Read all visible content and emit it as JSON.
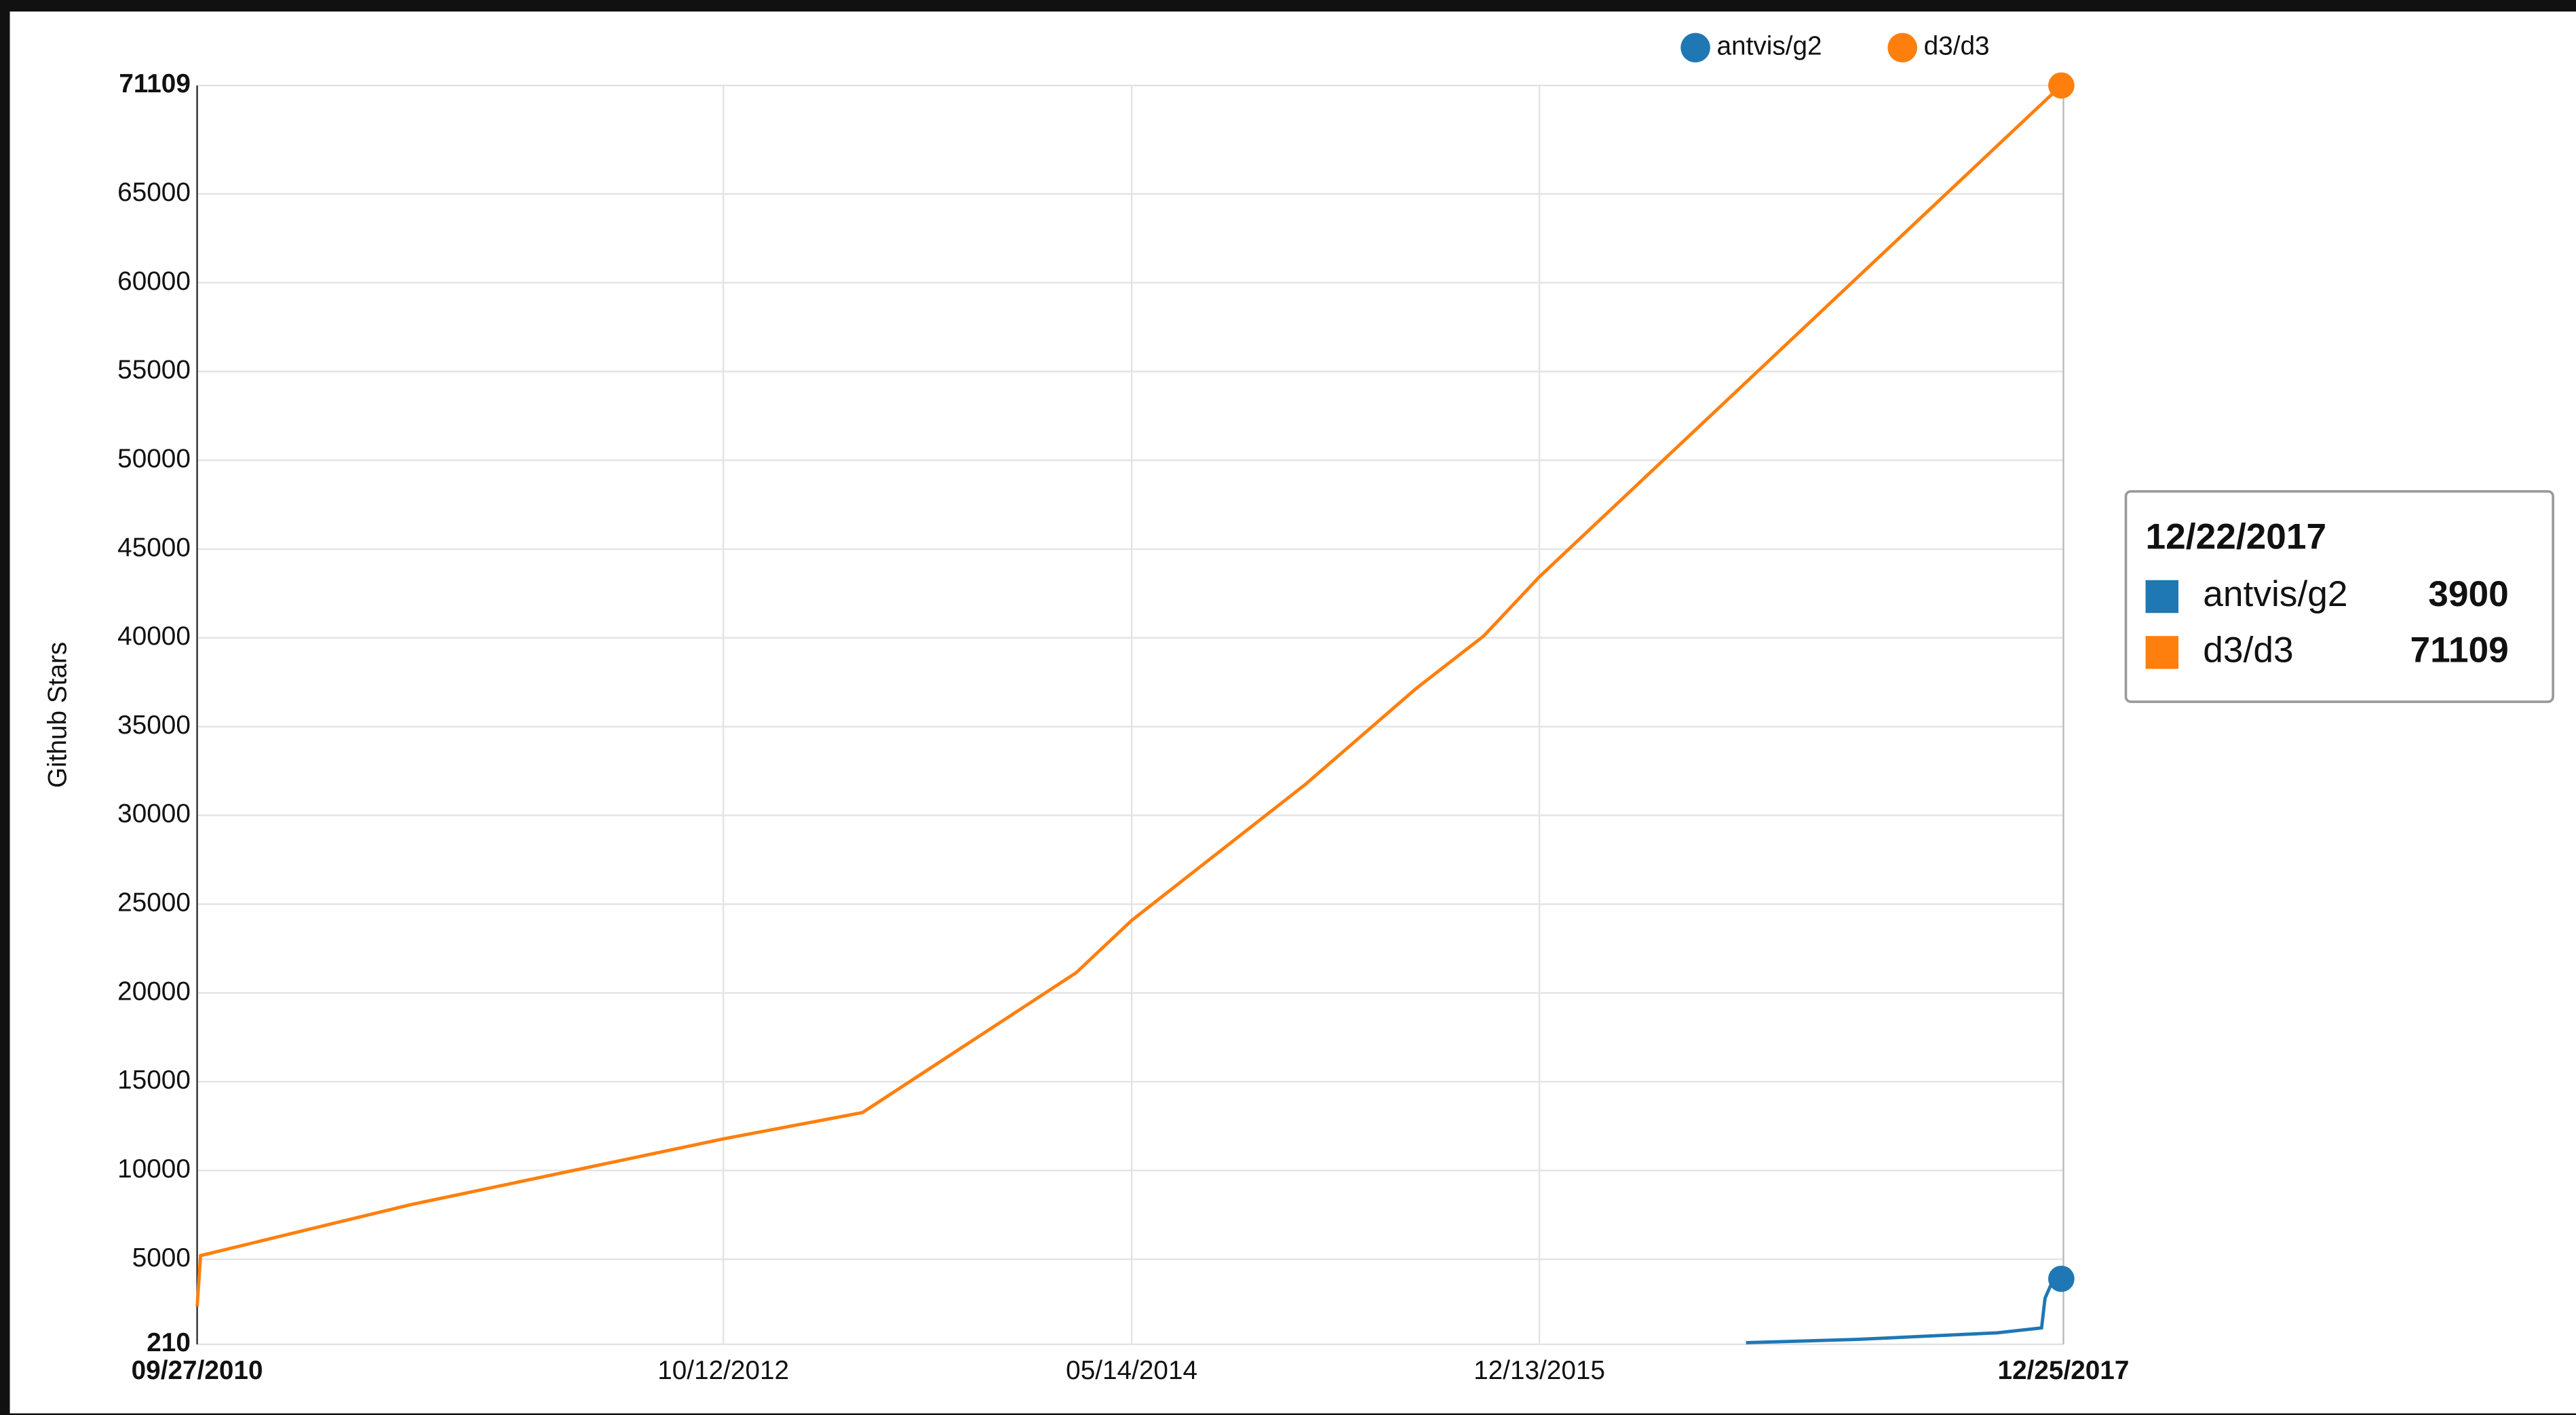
{
  "chart_data": {
    "type": "line",
    "y_label": "Github Stars",
    "xlim": [
      "09/27/2010",
      "12/25/2017"
    ],
    "xticks": [
      "09/27/2010",
      "10/12/2012",
      "05/14/2014",
      "12/13/2015",
      "12/25/2017"
    ],
    "ylim": [
      210,
      71109
    ],
    "yticks": [
      210,
      5000,
      10000,
      15000,
      20000,
      25000,
      30000,
      35000,
      40000,
      45000,
      50000,
      55000,
      60000,
      65000,
      71109
    ],
    "grid": true,
    "legend": "top",
    "series": [
      {
        "name": "antvis/g2",
        "color": "#1f77b4",
        "x": [
          "10/01/2016",
          "03/08/2017",
          "09/22/2017",
          "11/24/2017",
          "11/29/2017",
          "12/08/2017",
          "12/22/2017"
        ],
        "values": [
          300,
          488,
          858,
          1136,
          2802,
          3635,
          3900
        ]
      },
      {
        "name": "d3/d3",
        "color": "#ff7f0e",
        "x": [
          "09/27/2010",
          "10/02/2010",
          "07/27/2011",
          "10/12/2012",
          "04/27/2013",
          "02/24/2014",
          "05/14/2014",
          "01/16/2015",
          "06/21/2015",
          "09/25/2015",
          "12/13/2015",
          "12/22/2017"
        ],
        "values": [
          2340,
          5208,
          8078,
          11780,
          13261,
          21128,
          24090,
          31773,
          37141,
          40103,
          43435,
          71109
        ]
      }
    ]
  }
}
